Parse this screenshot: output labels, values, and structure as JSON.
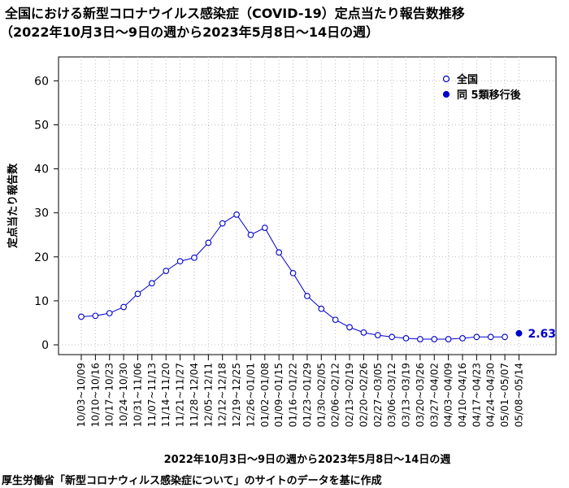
{
  "chart_data": {
    "type": "line",
    "title": "全国における新型コロナウイルス感染症（COVID-19）定点当たり報告数推移",
    "subtitle": "（2022年10月3日〜9日の週から2023年5月8日〜14日の週）",
    "xlabel": "2022年10月3日〜9日の週から2023年5月8日〜14日の週",
    "ylabel": "定点当たり報告数",
    "ylim": [
      0,
      65
    ],
    "yticks": [
      "0",
      "10",
      "20",
      "30",
      "40",
      "50",
      "60"
    ],
    "grid": true,
    "legend_position": "top-right",
    "categories": [
      "10/03~10/09",
      "10/10~10/16",
      "10/17~10/23",
      "10/24~10/30",
      "10/31~11/06",
      "11/07~11/13",
      "11/14~11/20",
      "11/21~11/27",
      "11/28~12/04",
      "12/05~12/11",
      "12/12~12/18",
      "12/19~12/25",
      "12/26~01/01",
      "01/02~01/08",
      "01/09~01/15",
      "01/16~01/22",
      "01/23~01/29",
      "01/30~02/05",
      "02/06~02/12",
      "02/13~02/19",
      "02/20~02/26",
      "02/27~03/05",
      "03/06~03/12",
      "03/13~03/19",
      "03/20~03/26",
      "03/27~04/02",
      "04/03~04/09",
      "04/10~04/16",
      "04/17~04/23",
      "04/24~04/30",
      "05/01~05/07",
      "05/08~05/14"
    ],
    "series": [
      {
        "name": "全国",
        "color": "#0000cc",
        "marker": "open-circle",
        "values": [
          6.4,
          6.6,
          7.2,
          8.6,
          11.6,
          14.0,
          16.8,
          19.0,
          19.8,
          23.2,
          27.6,
          29.6,
          25.0,
          26.6,
          21.0,
          16.3,
          11.1,
          8.2,
          5.7,
          4.0,
          2.8,
          2.2,
          1.8,
          1.5,
          1.3,
          1.3,
          1.3,
          1.5,
          1.8,
          1.8,
          1.8,
          null
        ]
      },
      {
        "name": "同 5類移行後",
        "color": "#0000cc",
        "marker": "filled-circle",
        "values": [
          null,
          null,
          null,
          null,
          null,
          null,
          null,
          null,
          null,
          null,
          null,
          null,
          null,
          null,
          null,
          null,
          null,
          null,
          null,
          null,
          null,
          null,
          null,
          null,
          null,
          null,
          null,
          null,
          null,
          null,
          null,
          2.63
        ]
      }
    ],
    "annotations": [
      {
        "category_index": 31,
        "value": 2.63,
        "text": "2.63"
      }
    ]
  },
  "source_note": "厚生労働省「新型コロナウィルス感染症について」のサイトのデータを基に作成"
}
